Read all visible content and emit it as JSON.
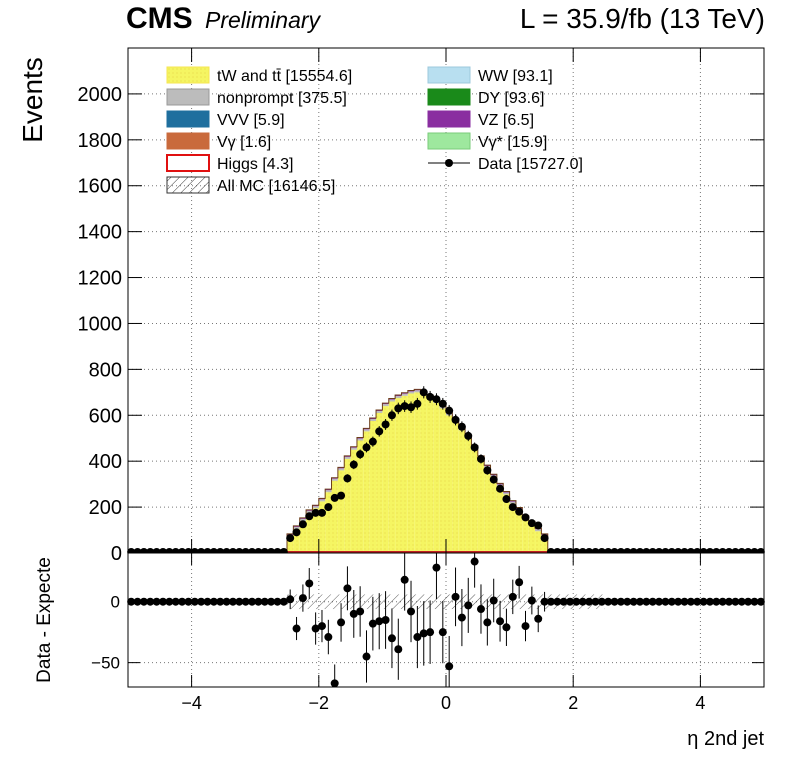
{
  "header": {
    "experiment": "CMS",
    "status": "Preliminary",
    "lumi": "L = 35.9/fb (13 TeV)"
  },
  "chart_data": [
    {
      "type": "bar",
      "panel": "main",
      "ylabel": "Events",
      "xlim": [
        -5,
        5
      ],
      "ylim": [
        0,
        2200
      ],
      "x_ticks": [
        "−4",
        "−2",
        "0",
        "2",
        "4"
      ],
      "y_ticks": [
        "0",
        "200",
        "400",
        "600",
        "800",
        "1000",
        "1200",
        "1400",
        "1600",
        "1800",
        "2000"
      ],
      "grid": true,
      "legend_position": "top",
      "bin_edges_start": -5,
      "bin_width": 0.1,
      "stack_mc": [
        0,
        0,
        0,
        0,
        0,
        0,
        0,
        0,
        0,
        0,
        0,
        0,
        0,
        0,
        0,
        0,
        0,
        0,
        0,
        0,
        0,
        0,
        0,
        0,
        0,
        70,
        105,
        140,
        175,
        195,
        225,
        265,
        315,
        360,
        410,
        450,
        490,
        530,
        575,
        610,
        640,
        660,
        675,
        685,
        695,
        700,
        690,
        675,
        655,
        630,
        600,
        570,
        535,
        500,
        455,
        410,
        370,
        330,
        290,
        255,
        215,
        185,
        150,
        125,
        95,
        70,
        0,
        0,
        0,
        0,
        0,
        0,
        0,
        0,
        0,
        0,
        0,
        0,
        0,
        0,
        0,
        0,
        0,
        0,
        0,
        0,
        0,
        0,
        0,
        0,
        0,
        0,
        0,
        0,
        0,
        0,
        0,
        0,
        0,
        0
      ],
      "data_points": [
        0,
        0,
        0,
        0,
        0,
        0,
        0,
        0,
        0,
        0,
        0,
        0,
        0,
        0,
        0,
        0,
        0,
        0,
        0,
        0,
        0,
        0,
        0,
        0,
        0,
        65,
        90,
        125,
        160,
        175,
        175,
        200,
        240,
        250,
        325,
        385,
        430,
        460,
        485,
        530,
        560,
        600,
        630,
        640,
        635,
        650,
        700,
        680,
        670,
        650,
        620,
        580,
        550,
        510,
        460,
        410,
        360,
        320,
        280,
        235,
        200,
        180,
        155,
        130,
        120,
        65,
        0,
        0,
        0,
        0,
        0,
        0,
        0,
        0,
        0,
        0,
        0,
        0,
        0,
        0,
        0,
        0,
        0,
        0,
        0,
        0,
        0,
        0,
        0,
        0,
        0,
        0,
        0,
        0,
        0,
        0,
        0,
        0,
        0,
        0
      ],
      "series": [
        {
          "name": "tW and tt̄ [15554.6]",
          "color": "#f5f562"
        },
        {
          "name": "nonprompt [375.5]",
          "color": "#bcbcbc"
        },
        {
          "name": "VVV [5.9]",
          "color": "#1f6f9e"
        },
        {
          "name": "Vγ [1.6]",
          "color": "#c96a3c"
        },
        {
          "name": "Higgs [4.3]",
          "color": "#e01010"
        },
        {
          "name": "All MC [16146.5]",
          "color": "#555555"
        },
        {
          "name": "WW [93.1]",
          "color": "#b8dff0"
        },
        {
          "name": "DY [93.6]",
          "color": "#1a8a1a"
        },
        {
          "name": "VZ [6.5]",
          "color": "#8a2ea0"
        },
        {
          "name": "Vγ* [15.9]",
          "color": "#9ee89e"
        },
        {
          "name": "Data [15727.0]",
          "color": "#000000"
        }
      ]
    },
    {
      "type": "scatter",
      "panel": "ratio",
      "ylabel": "Data - Expecte",
      "xlabel": "η 2nd jet",
      "xlim": [
        -5,
        5
      ],
      "ylim": [
        -70,
        40
      ],
      "y_ticks": [
        "−50",
        "0"
      ],
      "x_ticks": [
        "−4",
        "−2",
        "0",
        "2",
        "4"
      ],
      "grid": true,
      "diff_points": [
        0,
        0,
        0,
        0,
        0,
        0,
        0,
        0,
        0,
        0,
        0,
        0,
        0,
        0,
        0,
        0,
        0,
        0,
        0,
        0,
        0,
        0,
        0,
        0,
        0,
        2,
        -22,
        3,
        15,
        -22,
        -20,
        -29,
        -67,
        -17,
        11,
        -10,
        -8,
        -45,
        -18,
        -16,
        -15,
        -30,
        -39,
        18,
        -8,
        -29,
        -26,
        -25,
        28,
        -25,
        -53,
        4,
        -13,
        -3,
        33,
        -6,
        -17,
        1,
        -16,
        -21,
        4,
        16,
        -20,
        1,
        -14,
        0,
        0,
        0,
        0,
        0,
        0,
        0,
        0,
        0,
        0,
        0,
        0,
        0,
        0,
        0,
        0,
        0,
        0,
        0,
        0,
        0,
        0,
        0,
        0,
        0,
        0,
        0,
        0,
        0,
        0,
        0,
        0,
        0,
        0,
        0
      ]
    }
  ]
}
